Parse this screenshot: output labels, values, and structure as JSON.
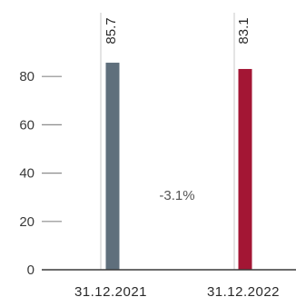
{
  "chart_data": {
    "type": "bar",
    "categories": [
      "31.12.2021",
      "31.12.2022"
    ],
    "values": [
      85.7,
      83.1
    ],
    "data_labels": [
      "85.7",
      "83.1"
    ],
    "bar_colors": [
      "#5f6f7c",
      "#a31634"
    ],
    "yticks": [
      0,
      20,
      40,
      60,
      80
    ],
    "ylim": [
      0,
      100
    ],
    "grid": false,
    "annotation": "-3.1%",
    "colors": {
      "axis": "#3a3a3a",
      "tick": "#8c8c8c",
      "guide": "#c8c8c8"
    }
  }
}
